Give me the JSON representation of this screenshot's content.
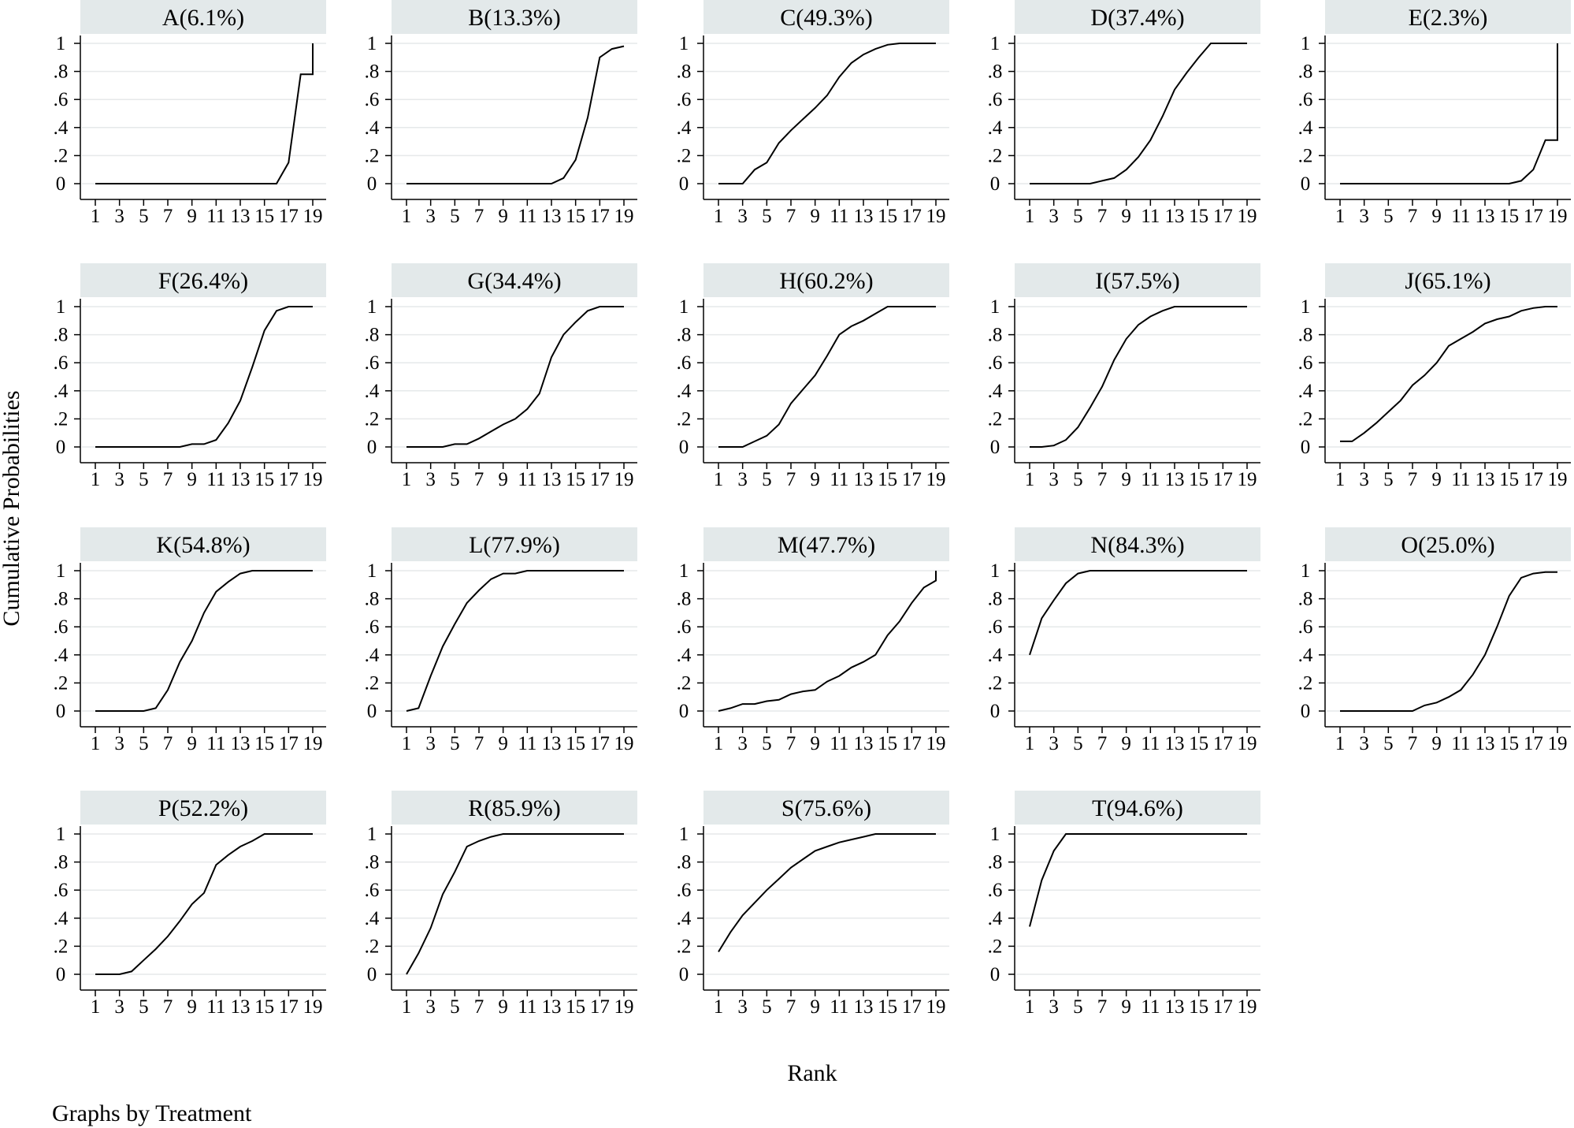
{
  "figure": {
    "ylabel": "Cumulative Probabilities",
    "xlabel": "Rank",
    "note": "Graphs by Treatment"
  },
  "colors": {
    "line": "#000000",
    "title_bg": "#e3e9ea",
    "grid": "#e6e9ea",
    "axis": "#000000"
  },
  "chart_data": [
    {
      "type": "line",
      "title": "A(6.1%)",
      "x": [
        1,
        2,
        3,
        4,
        5,
        6,
        7,
        8,
        9,
        10,
        11,
        12,
        13,
        14,
        15,
        16,
        17,
        18,
        19,
        19
      ],
      "values": [
        0,
        0,
        0,
        0,
        0,
        0,
        0,
        0,
        0,
        0,
        0,
        0,
        0,
        0,
        0,
        0,
        0.15,
        0.78,
        0.78,
        1
      ],
      "xticks": [
        1,
        3,
        5,
        7,
        9,
        11,
        13,
        15,
        17,
        19
      ],
      "yticks": [
        0,
        0.2,
        0.4,
        0.6,
        0.8,
        1
      ],
      "ytick_labels": [
        "0",
        ".2",
        ".4",
        ".6",
        ".8",
        "1"
      ],
      "ylim": [
        0,
        1
      ],
      "xlim": [
        1,
        19
      ]
    },
    {
      "type": "line",
      "title": "B(13.3%)",
      "x": [
        1,
        2,
        3,
        4,
        5,
        6,
        7,
        8,
        9,
        10,
        11,
        12,
        13,
        14,
        15,
        16,
        17,
        18,
        19
      ],
      "values": [
        0,
        0,
        0,
        0,
        0,
        0,
        0,
        0,
        0,
        0,
        0,
        0,
        0,
        0.04,
        0.17,
        0.47,
        0.9,
        0.96,
        0.98
      ],
      "xticks": [
        1,
        3,
        5,
        7,
        9,
        11,
        13,
        15,
        17,
        19
      ],
      "yticks": [
        0,
        0.2,
        0.4,
        0.6,
        0.8,
        1
      ],
      "ytick_labels": [
        "0",
        ".2",
        ".4",
        ".6",
        ".8",
        "1"
      ],
      "ylim": [
        0,
        1
      ],
      "xlim": [
        1,
        19
      ]
    },
    {
      "type": "line",
      "title": "C(49.3%)",
      "x": [
        1,
        2,
        3,
        4,
        5,
        6,
        7,
        8,
        9,
        10,
        11,
        12,
        13,
        14,
        15,
        16,
        17,
        18,
        19
      ],
      "values": [
        0,
        0,
        0,
        0.1,
        0.15,
        0.29,
        0.38,
        0.46,
        0.54,
        0.63,
        0.76,
        0.86,
        0.92,
        0.96,
        0.99,
        1,
        1,
        1,
        1
      ],
      "xticks": [
        1,
        3,
        5,
        7,
        9,
        11,
        13,
        15,
        17,
        19
      ],
      "yticks": [
        0,
        0.2,
        0.4,
        0.6,
        0.8,
        1
      ],
      "ytick_labels": [
        "0",
        ".2",
        ".4",
        ".6",
        ".8",
        "1"
      ],
      "ylim": [
        0,
        1
      ],
      "xlim": [
        1,
        19
      ]
    },
    {
      "type": "line",
      "title": "D(37.4%)",
      "x": [
        1,
        2,
        3,
        4,
        5,
        6,
        7,
        8,
        9,
        10,
        11,
        12,
        13,
        14,
        15,
        16,
        17,
        18,
        19
      ],
      "values": [
        0,
        0,
        0,
        0,
        0,
        0,
        0.02,
        0.04,
        0.1,
        0.19,
        0.31,
        0.48,
        0.67,
        0.79,
        0.9,
        1,
        1,
        1,
        1
      ],
      "xticks": [
        1,
        3,
        5,
        7,
        9,
        11,
        13,
        15,
        17,
        19
      ],
      "yticks": [
        0,
        0.2,
        0.4,
        0.6,
        0.8,
        1
      ],
      "ytick_labels": [
        "0",
        ".2",
        ".4",
        ".6",
        ".8",
        "1"
      ],
      "ylim": [
        0,
        1
      ],
      "xlim": [
        1,
        19
      ]
    },
    {
      "type": "line",
      "title": "E(2.3%)",
      "x": [
        1,
        2,
        3,
        4,
        5,
        6,
        7,
        8,
        9,
        10,
        11,
        12,
        13,
        14,
        15,
        16,
        17,
        18,
        19,
        19
      ],
      "values": [
        0,
        0,
        0,
        0,
        0,
        0,
        0,
        0,
        0,
        0,
        0,
        0,
        0,
        0,
        0,
        0.02,
        0.1,
        0.31,
        0.31,
        1
      ],
      "xticks": [
        1,
        3,
        5,
        7,
        9,
        11,
        13,
        15,
        17,
        19
      ],
      "yticks": [
        0,
        0.2,
        0.4,
        0.6,
        0.8,
        1
      ],
      "ytick_labels": [
        "0",
        ".2",
        ".4",
        ".6",
        ".8",
        "1"
      ],
      "ylim": [
        0,
        1
      ],
      "xlim": [
        1,
        19
      ]
    },
    {
      "type": "line",
      "title": "F(26.4%)",
      "x": [
        1,
        2,
        3,
        4,
        5,
        6,
        7,
        8,
        9,
        10,
        11,
        12,
        13,
        14,
        15,
        16,
        17,
        18,
        19
      ],
      "values": [
        0,
        0,
        0,
        0,
        0,
        0,
        0,
        0,
        0.02,
        0.02,
        0.05,
        0.17,
        0.33,
        0.57,
        0.83,
        0.97,
        1,
        1,
        1
      ],
      "xticks": [
        1,
        3,
        5,
        7,
        9,
        11,
        13,
        15,
        17,
        19
      ],
      "yticks": [
        0,
        0.2,
        0.4,
        0.6,
        0.8,
        1
      ],
      "ytick_labels": [
        "0",
        ".2",
        ".4",
        ".6",
        ".8",
        "1"
      ],
      "ylim": [
        0,
        1
      ],
      "xlim": [
        1,
        19
      ]
    },
    {
      "type": "line",
      "title": "G(34.4%)",
      "x": [
        1,
        2,
        3,
        4,
        5,
        6,
        7,
        8,
        9,
        10,
        11,
        12,
        13,
        14,
        15,
        16,
        17,
        18,
        19
      ],
      "values": [
        0,
        0,
        0,
        0,
        0.02,
        0.02,
        0.06,
        0.11,
        0.16,
        0.2,
        0.27,
        0.38,
        0.64,
        0.8,
        0.89,
        0.97,
        1,
        1,
        1
      ],
      "xticks": [
        1,
        3,
        5,
        7,
        9,
        11,
        13,
        15,
        17,
        19
      ],
      "yticks": [
        0,
        0.2,
        0.4,
        0.6,
        0.8,
        1
      ],
      "ytick_labels": [
        "0",
        ".2",
        ".4",
        ".6",
        ".8",
        "1"
      ],
      "ylim": [
        0,
        1
      ],
      "xlim": [
        1,
        19
      ]
    },
    {
      "type": "line",
      "title": "H(60.2%)",
      "x": [
        1,
        2,
        3,
        4,
        5,
        6,
        7,
        8,
        9,
        10,
        11,
        12,
        13,
        14,
        15,
        16,
        17,
        18,
        19
      ],
      "values": [
        0,
        0,
        0,
        0.04,
        0.08,
        0.16,
        0.31,
        0.41,
        0.51,
        0.65,
        0.8,
        0.86,
        0.9,
        0.95,
        1,
        1,
        1,
        1,
        1
      ],
      "xticks": [
        1,
        3,
        5,
        7,
        9,
        11,
        13,
        15,
        17,
        19
      ],
      "yticks": [
        0,
        0.2,
        0.4,
        0.6,
        0.8,
        1
      ],
      "ytick_labels": [
        "0",
        ".2",
        ".4",
        ".6",
        ".8",
        "1"
      ],
      "ylim": [
        0,
        1
      ],
      "xlim": [
        1,
        19
      ]
    },
    {
      "type": "line",
      "title": "I(57.5%)",
      "x": [
        1,
        2,
        3,
        4,
        5,
        6,
        7,
        8,
        9,
        10,
        11,
        12,
        13,
        14,
        15,
        16,
        17,
        18,
        19
      ],
      "values": [
        0,
        0,
        0.01,
        0.05,
        0.14,
        0.28,
        0.43,
        0.62,
        0.77,
        0.87,
        0.93,
        0.97,
        1,
        1,
        1,
        1,
        1,
        1,
        1
      ],
      "xticks": [
        1,
        3,
        5,
        7,
        9,
        11,
        13,
        15,
        17,
        19
      ],
      "yticks": [
        0,
        0.2,
        0.4,
        0.6,
        0.8,
        1
      ],
      "ytick_labels": [
        "0",
        ".2",
        ".4",
        ".6",
        ".8",
        "1"
      ],
      "ylim": [
        0,
        1
      ],
      "xlim": [
        1,
        19
      ]
    },
    {
      "type": "line",
      "title": "J(65.1%)",
      "x": [
        1,
        2,
        3,
        4,
        5,
        6,
        7,
        8,
        9,
        10,
        11,
        12,
        13,
        14,
        15,
        16,
        17,
        18,
        19
      ],
      "values": [
        0.04,
        0.04,
        0.1,
        0.17,
        0.25,
        0.33,
        0.44,
        0.51,
        0.6,
        0.72,
        0.77,
        0.82,
        0.88,
        0.91,
        0.93,
        0.97,
        0.99,
        1,
        1
      ],
      "xticks": [
        1,
        3,
        5,
        7,
        9,
        11,
        13,
        15,
        17,
        19
      ],
      "yticks": [
        0,
        0.2,
        0.4,
        0.6,
        0.8,
        1
      ],
      "ytick_labels": [
        "0",
        ".2",
        ".4",
        ".6",
        ".8",
        "1"
      ],
      "ylim": [
        0,
        1
      ],
      "xlim": [
        1,
        19
      ]
    },
    {
      "type": "line",
      "title": "K(54.8%)",
      "x": [
        1,
        2,
        3,
        4,
        5,
        6,
        7,
        8,
        9,
        10,
        11,
        12,
        13,
        14,
        15,
        16,
        17,
        18,
        19
      ],
      "values": [
        0,
        0,
        0,
        0,
        0,
        0.02,
        0.15,
        0.35,
        0.5,
        0.7,
        0.85,
        0.92,
        0.98,
        1,
        1,
        1,
        1,
        1,
        1
      ],
      "xticks": [
        1,
        3,
        5,
        7,
        9,
        11,
        13,
        15,
        17,
        19
      ],
      "yticks": [
        0,
        0.2,
        0.4,
        0.6,
        0.8,
        1
      ],
      "ytick_labels": [
        "0",
        ".2",
        ".4",
        ".6",
        ".8",
        "1"
      ],
      "ylim": [
        0,
        1
      ],
      "xlim": [
        1,
        19
      ]
    },
    {
      "type": "line",
      "title": "L(77.9%)",
      "x": [
        1,
        2,
        3,
        4,
        5,
        6,
        7,
        8,
        9,
        10,
        11,
        12,
        13,
        14,
        15,
        16,
        17,
        18,
        19
      ],
      "values": [
        0,
        0.02,
        0.25,
        0.46,
        0.62,
        0.77,
        0.86,
        0.94,
        0.98,
        0.98,
        1,
        1,
        1,
        1,
        1,
        1,
        1,
        1,
        1
      ],
      "xticks": [
        1,
        3,
        5,
        7,
        9,
        11,
        13,
        15,
        17,
        19
      ],
      "yticks": [
        0,
        0.2,
        0.4,
        0.6,
        0.8,
        1
      ],
      "ytick_labels": [
        "0",
        ".2",
        ".4",
        ".6",
        ".8",
        "1"
      ],
      "ylim": [
        0,
        1
      ],
      "xlim": [
        1,
        19
      ]
    },
    {
      "type": "line",
      "title": "M(47.7%)",
      "x": [
        1,
        2,
        3,
        4,
        5,
        6,
        7,
        8,
        9,
        10,
        11,
        12,
        13,
        14,
        15,
        16,
        17,
        18,
        19,
        19
      ],
      "values": [
        0,
        0.02,
        0.05,
        0.05,
        0.07,
        0.08,
        0.12,
        0.14,
        0.15,
        0.21,
        0.25,
        0.31,
        0.35,
        0.4,
        0.54,
        0.64,
        0.77,
        0.88,
        0.93,
        1
      ],
      "xticks": [
        1,
        3,
        5,
        7,
        9,
        11,
        13,
        15,
        17,
        19
      ],
      "yticks": [
        0,
        0.2,
        0.4,
        0.6,
        0.8,
        1
      ],
      "ytick_labels": [
        "0",
        ".2",
        ".4",
        ".6",
        ".8",
        "1"
      ],
      "ylim": [
        0,
        1
      ],
      "xlim": [
        1,
        19
      ]
    },
    {
      "type": "line",
      "title": "N(84.3%)",
      "x": [
        1,
        2,
        3,
        4,
        5,
        6,
        7,
        8,
        9,
        10,
        11,
        12,
        13,
        14,
        15,
        16,
        17,
        18,
        19
      ],
      "values": [
        0.4,
        0.66,
        0.79,
        0.91,
        0.98,
        1,
        1,
        1,
        1,
        1,
        1,
        1,
        1,
        1,
        1,
        1,
        1,
        1,
        1
      ],
      "xticks": [
        1,
        3,
        5,
        7,
        9,
        11,
        13,
        15,
        17,
        19
      ],
      "yticks": [
        0,
        0.2,
        0.4,
        0.6,
        0.8,
        1
      ],
      "ytick_labels": [
        "0",
        ".2",
        ".4",
        ".6",
        ".8",
        "1"
      ],
      "ylim": [
        0,
        1
      ],
      "xlim": [
        1,
        19
      ]
    },
    {
      "type": "line",
      "title": "O(25.0%)",
      "x": [
        1,
        2,
        3,
        4,
        5,
        6,
        7,
        8,
        9,
        10,
        11,
        12,
        13,
        14,
        15,
        16,
        17,
        18,
        19
      ],
      "values": [
        0,
        0,
        0,
        0,
        0,
        0,
        0,
        0.04,
        0.06,
        0.1,
        0.15,
        0.26,
        0.4,
        0.6,
        0.82,
        0.95,
        0.98,
        0.99,
        0.99
      ],
      "xticks": [
        1,
        3,
        5,
        7,
        9,
        11,
        13,
        15,
        17,
        19
      ],
      "yticks": [
        0,
        0.2,
        0.4,
        0.6,
        0.8,
        1
      ],
      "ytick_labels": [
        "0",
        ".2",
        ".4",
        ".6",
        ".8",
        "1"
      ],
      "ylim": [
        0,
        1
      ],
      "xlim": [
        1,
        19
      ]
    },
    {
      "type": "line",
      "title": "P(52.2%)",
      "x": [
        1,
        2,
        3,
        4,
        5,
        6,
        7,
        8,
        9,
        10,
        11,
        12,
        13,
        14,
        15,
        16,
        17,
        18,
        19
      ],
      "values": [
        0,
        0,
        0,
        0.02,
        0.1,
        0.18,
        0.27,
        0.38,
        0.5,
        0.58,
        0.78,
        0.85,
        0.91,
        0.95,
        1,
        1,
        1,
        1,
        1
      ],
      "xticks": [
        1,
        3,
        5,
        7,
        9,
        11,
        13,
        15,
        17,
        19
      ],
      "yticks": [
        0,
        0.2,
        0.4,
        0.6,
        0.8,
        1
      ],
      "ytick_labels": [
        "0",
        ".2",
        ".4",
        ".6",
        ".8",
        "1"
      ],
      "ylim": [
        0,
        1
      ],
      "xlim": [
        1,
        19
      ]
    },
    {
      "type": "line",
      "title": "R(85.9%)",
      "x": [
        1,
        2,
        3,
        4,
        5,
        6,
        7,
        8,
        9,
        10,
        11,
        12,
        13,
        14,
        15,
        16,
        17,
        18,
        19
      ],
      "values": [
        0,
        0.15,
        0.33,
        0.57,
        0.73,
        0.91,
        0.95,
        0.98,
        1,
        1,
        1,
        1,
        1,
        1,
        1,
        1,
        1,
        1,
        1
      ],
      "xticks": [
        1,
        3,
        5,
        7,
        9,
        11,
        13,
        15,
        17,
        19
      ],
      "yticks": [
        0,
        0.2,
        0.4,
        0.6,
        0.8,
        1
      ],
      "ytick_labels": [
        "0",
        ".2",
        ".4",
        ".6",
        ".8",
        "1"
      ],
      "ylim": [
        0,
        1
      ],
      "xlim": [
        1,
        19
      ]
    },
    {
      "type": "line",
      "title": "S(75.6%)",
      "x": [
        1,
        2,
        3,
        4,
        5,
        6,
        7,
        8,
        9,
        10,
        11,
        12,
        13,
        14,
        15,
        16,
        17,
        18,
        19
      ],
      "values": [
        0.16,
        0.3,
        0.42,
        0.51,
        0.6,
        0.68,
        0.76,
        0.82,
        0.88,
        0.91,
        0.94,
        0.96,
        0.98,
        1,
        1,
        1,
        1,
        1,
        1
      ],
      "xticks": [
        1,
        3,
        5,
        7,
        9,
        11,
        13,
        15,
        17,
        19
      ],
      "yticks": [
        0,
        0.2,
        0.4,
        0.6,
        0.8,
        1
      ],
      "ytick_labels": [
        "0",
        ".2",
        ".4",
        ".6",
        ".8",
        "1"
      ],
      "ylim": [
        0,
        1
      ],
      "xlim": [
        1,
        19
      ]
    },
    {
      "type": "line",
      "title": "T(94.6%)",
      "x": [
        1,
        2,
        3,
        4,
        5,
        6,
        7,
        8,
        9,
        10,
        11,
        12,
        13,
        14,
        15,
        16,
        17,
        18,
        19
      ],
      "values": [
        0.34,
        0.67,
        0.88,
        1,
        1,
        1,
        1,
        1,
        1,
        1,
        1,
        1,
        1,
        1,
        1,
        1,
        1,
        1,
        1
      ],
      "xticks": [
        1,
        3,
        5,
        7,
        9,
        11,
        13,
        15,
        17,
        19
      ],
      "yticks": [
        0,
        0.2,
        0.4,
        0.6,
        0.8,
        1
      ],
      "ytick_labels": [
        "0",
        ".2",
        ".4",
        ".6",
        ".8",
        "1"
      ],
      "ylim": [
        0,
        1
      ],
      "xlim": [
        1,
        19
      ]
    }
  ]
}
